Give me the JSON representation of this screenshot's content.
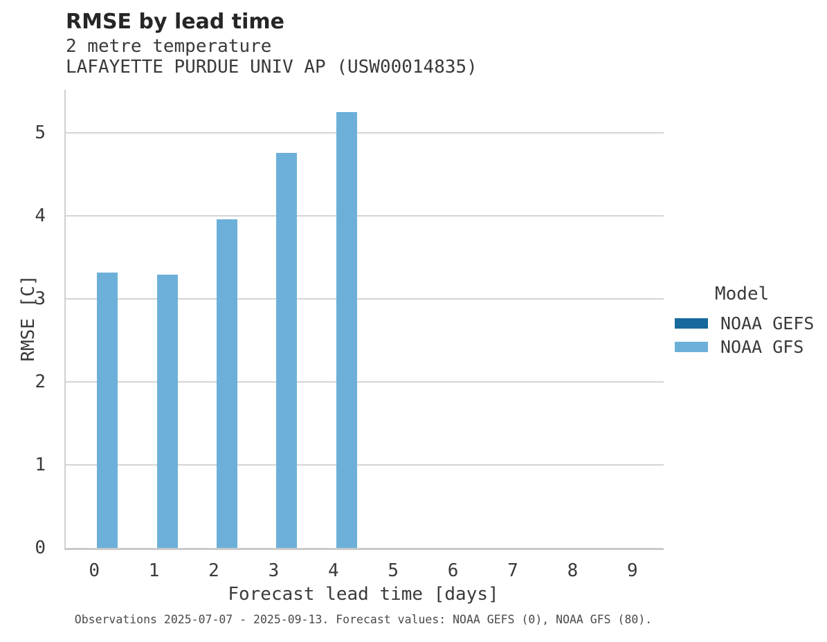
{
  "header": {
    "title": "RMSE by lead time",
    "subtitle_line1": "2 metre temperature",
    "subtitle_line2": "LAFAYETTE PURDUE UNIV AP (USW00014835)"
  },
  "chart_data": {
    "type": "bar",
    "title": "RMSE by lead time",
    "subtitle": [
      "2 metre temperature",
      "LAFAYETTE PURDUE UNIV AP (USW00014835)"
    ],
    "xlabel": "Forecast lead time [days]",
    "ylabel": "RMSE [C]",
    "categories": [
      "0",
      "1",
      "2",
      "3",
      "4",
      "5",
      "6",
      "7",
      "8",
      "9"
    ],
    "series": [
      {
        "name": "NOAA GEFS",
        "color": "#17699c",
        "values": [
          0,
          0,
          0,
          0,
          0,
          0,
          0,
          0,
          0,
          0
        ]
      },
      {
        "name": "NOAA GFS",
        "color": "#6cb0d9",
        "values": [
          3.32,
          3.29,
          3.96,
          4.76,
          5.25,
          null,
          null,
          null,
          null,
          null
        ]
      }
    ],
    "ylim": [
      0,
      5.52
    ],
    "yticks": [
      0,
      1,
      2,
      3,
      4,
      5
    ],
    "grid": true,
    "legend_title": "Model",
    "legend_position": "right",
    "gridline_color": "#d4d4d4",
    "axis_color": "#c9c9c9"
  },
  "footer": {
    "note": "Observations 2025-07-07 - 2025-09-13. Forecast values: NOAA GEFS (0), NOAA GFS (80)."
  }
}
